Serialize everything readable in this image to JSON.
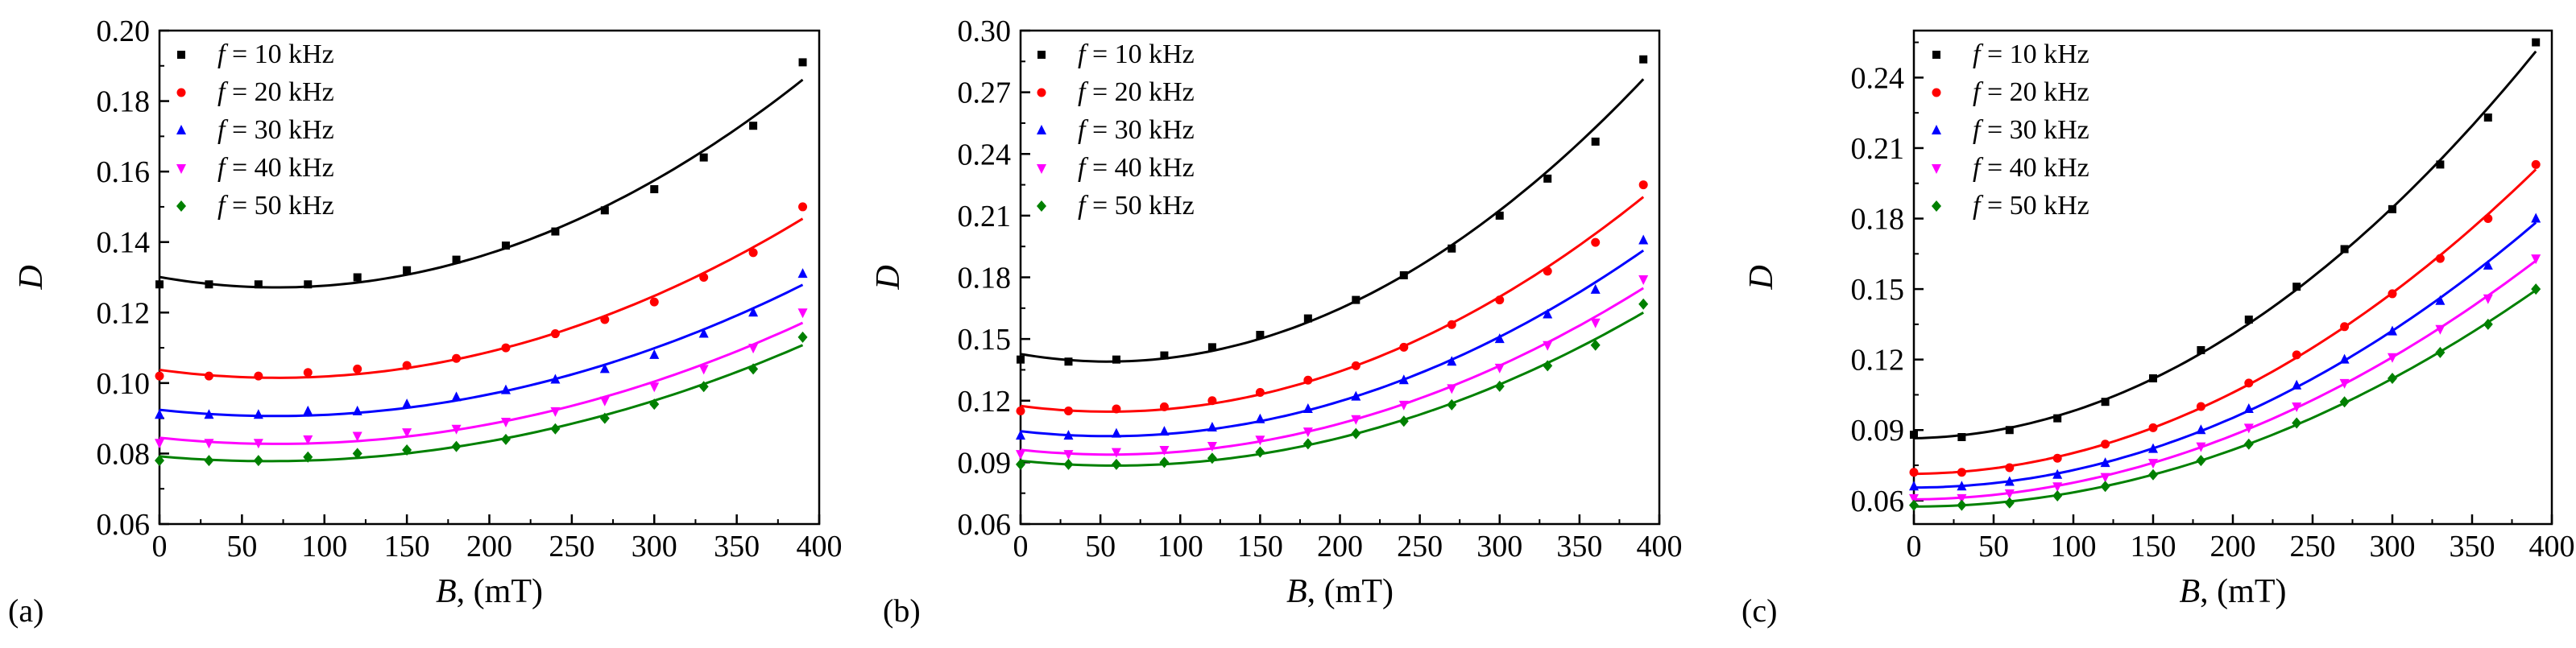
{
  "figure": {
    "panels": [
      {
        "label": "(a)"
      },
      {
        "label": "(b)"
      },
      {
        "label": "(c)"
      }
    ]
  },
  "chart_data": [
    {
      "type": "scatter",
      "panel": "(a)",
      "xlabel_var": "B",
      "xlabel_unit": ", (mT)",
      "ylabel": "D",
      "xlim": [
        0,
        400
      ],
      "ylim": [
        0.06,
        0.2
      ],
      "xticks": [
        0,
        50,
        100,
        150,
        200,
        250,
        300,
        350,
        400
      ],
      "yticks": [
        0.06,
        0.08,
        0.1,
        0.12,
        0.14,
        0.16,
        0.18,
        0.2
      ],
      "ytick_decimals": 2,
      "legend_position": "top-left",
      "fit_lines": true,
      "x": [
        0,
        30,
        60,
        90,
        120,
        150,
        180,
        210,
        240,
        270,
        300,
        330,
        360,
        390
      ],
      "series": [
        {
          "name": "f = 10 kHz",
          "color": "#000000",
          "marker": "square",
          "values": [
            0.128,
            0.128,
            0.128,
            0.128,
            0.13,
            0.132,
            0.135,
            0.139,
            0.143,
            0.149,
            0.155,
            0.164,
            0.173,
            0.191
          ]
        },
        {
          "name": "f = 20 kHz",
          "color": "#ff0000",
          "marker": "circle",
          "values": [
            0.102,
            0.102,
            0.102,
            0.103,
            0.104,
            0.105,
            0.107,
            0.11,
            0.114,
            0.118,
            0.123,
            0.13,
            0.137,
            0.15
          ]
        },
        {
          "name": "f = 30 kHz",
          "color": "#0000ff",
          "marker": "triangle-up",
          "values": [
            0.091,
            0.091,
            0.091,
            0.092,
            0.092,
            0.094,
            0.096,
            0.098,
            0.101,
            0.104,
            0.108,
            0.114,
            0.12,
            0.131
          ]
        },
        {
          "name": "f = 40 kHz",
          "color": "#ff00ff",
          "marker": "triangle-down",
          "values": [
            0.083,
            0.083,
            0.083,
            0.084,
            0.085,
            0.086,
            0.087,
            0.089,
            0.092,
            0.095,
            0.099,
            0.104,
            0.11,
            0.12
          ]
        },
        {
          "name": "f = 50 kHz",
          "color": "#008000",
          "marker": "diamond",
          "values": [
            0.078,
            0.078,
            0.078,
            0.079,
            0.08,
            0.081,
            0.082,
            0.084,
            0.087,
            0.09,
            0.094,
            0.099,
            0.104,
            0.113
          ]
        }
      ]
    },
    {
      "type": "scatter",
      "panel": "(b)",
      "xlabel_var": "B",
      "xlabel_unit": ", (mT)",
      "ylabel": "D",
      "xlim": [
        0,
        400
      ],
      "ylim": [
        0.06,
        0.3
      ],
      "xticks": [
        0,
        50,
        100,
        150,
        200,
        250,
        300,
        350,
        400
      ],
      "yticks": [
        0.06,
        0.09,
        0.12,
        0.15,
        0.18,
        0.21,
        0.24,
        0.27,
        0.3
      ],
      "ytick_decimals": 2,
      "legend_position": "top-left",
      "fit_lines": true,
      "x": [
        0,
        30,
        60,
        90,
        120,
        150,
        180,
        210,
        240,
        270,
        300,
        330,
        360,
        390
      ],
      "series": [
        {
          "name": "f = 10 kHz",
          "color": "#000000",
          "marker": "square",
          "values": [
            0.14,
            0.139,
            0.14,
            0.142,
            0.146,
            0.152,
            0.16,
            0.169,
            0.181,
            0.194,
            0.21,
            0.228,
            0.246,
            0.286
          ]
        },
        {
          "name": "f = 20 kHz",
          "color": "#ff0000",
          "marker": "circle",
          "values": [
            0.115,
            0.115,
            0.116,
            0.117,
            0.12,
            0.124,
            0.13,
            0.137,
            0.146,
            0.157,
            0.169,
            0.183,
            0.197,
            0.225
          ]
        },
        {
          "name": "f = 30 kHz",
          "color": "#0000ff",
          "marker": "triangle-up",
          "values": [
            0.103,
            0.103,
            0.104,
            0.105,
            0.107,
            0.111,
            0.116,
            0.122,
            0.13,
            0.139,
            0.15,
            0.162,
            0.174,
            0.198
          ]
        },
        {
          "name": "f = 40 kHz",
          "color": "#ff00ff",
          "marker": "triangle-down",
          "values": [
            0.094,
            0.094,
            0.095,
            0.096,
            0.098,
            0.101,
            0.105,
            0.111,
            0.118,
            0.126,
            0.136,
            0.147,
            0.158,
            0.179
          ]
        },
        {
          "name": "f = 50 kHz",
          "color": "#008000",
          "marker": "diamond",
          "values": [
            0.089,
            0.089,
            0.089,
            0.09,
            0.092,
            0.095,
            0.099,
            0.104,
            0.11,
            0.118,
            0.127,
            0.137,
            0.147,
            0.167
          ]
        }
      ]
    },
    {
      "type": "scatter",
      "panel": "(c)",
      "xlabel_var": "B",
      "xlabel_unit": ", (mT)",
      "ylabel": "D",
      "xlim": [
        0,
        400
      ],
      "ylim": [
        0.05,
        0.26
      ],
      "xticks": [
        0,
        50,
        100,
        150,
        200,
        250,
        300,
        350,
        400
      ],
      "yticks": [
        0.06,
        0.09,
        0.12,
        0.15,
        0.18,
        0.21,
        0.24
      ],
      "ytick_decimals": 2,
      "legend_position": "top-left",
      "fit_lines": true,
      "x": [
        0,
        30,
        60,
        90,
        120,
        150,
        180,
        210,
        240,
        270,
        300,
        330,
        360,
        390
      ],
      "series": [
        {
          "name": "f = 10 kHz",
          "color": "#000000",
          "marker": "square",
          "values": [
            0.088,
            0.087,
            0.09,
            0.095,
            0.102,
            0.112,
            0.124,
            0.137,
            0.151,
            0.167,
            0.184,
            0.203,
            0.223,
            0.255
          ]
        },
        {
          "name": "f = 20 kHz",
          "color": "#ff0000",
          "marker": "circle",
          "values": [
            0.072,
            0.072,
            0.074,
            0.078,
            0.084,
            0.091,
            0.1,
            0.11,
            0.122,
            0.134,
            0.148,
            0.163,
            0.18,
            0.203
          ]
        },
        {
          "name": "f = 30 kHz",
          "color": "#0000ff",
          "marker": "triangle-up",
          "values": [
            0.066,
            0.066,
            0.068,
            0.071,
            0.076,
            0.082,
            0.09,
            0.099,
            0.109,
            0.12,
            0.132,
            0.145,
            0.16,
            0.18
          ]
        },
        {
          "name": "f = 40 kHz",
          "color": "#ff00ff",
          "marker": "triangle-down",
          "values": [
            0.061,
            0.061,
            0.063,
            0.066,
            0.07,
            0.076,
            0.083,
            0.091,
            0.1,
            0.11,
            0.121,
            0.133,
            0.146,
            0.163
          ]
        },
        {
          "name": "f = 50 kHz",
          "color": "#008000",
          "marker": "diamond",
          "values": [
            0.058,
            0.058,
            0.059,
            0.062,
            0.066,
            0.071,
            0.077,
            0.084,
            0.093,
            0.102,
            0.112,
            0.123,
            0.135,
            0.15
          ]
        }
      ]
    }
  ]
}
